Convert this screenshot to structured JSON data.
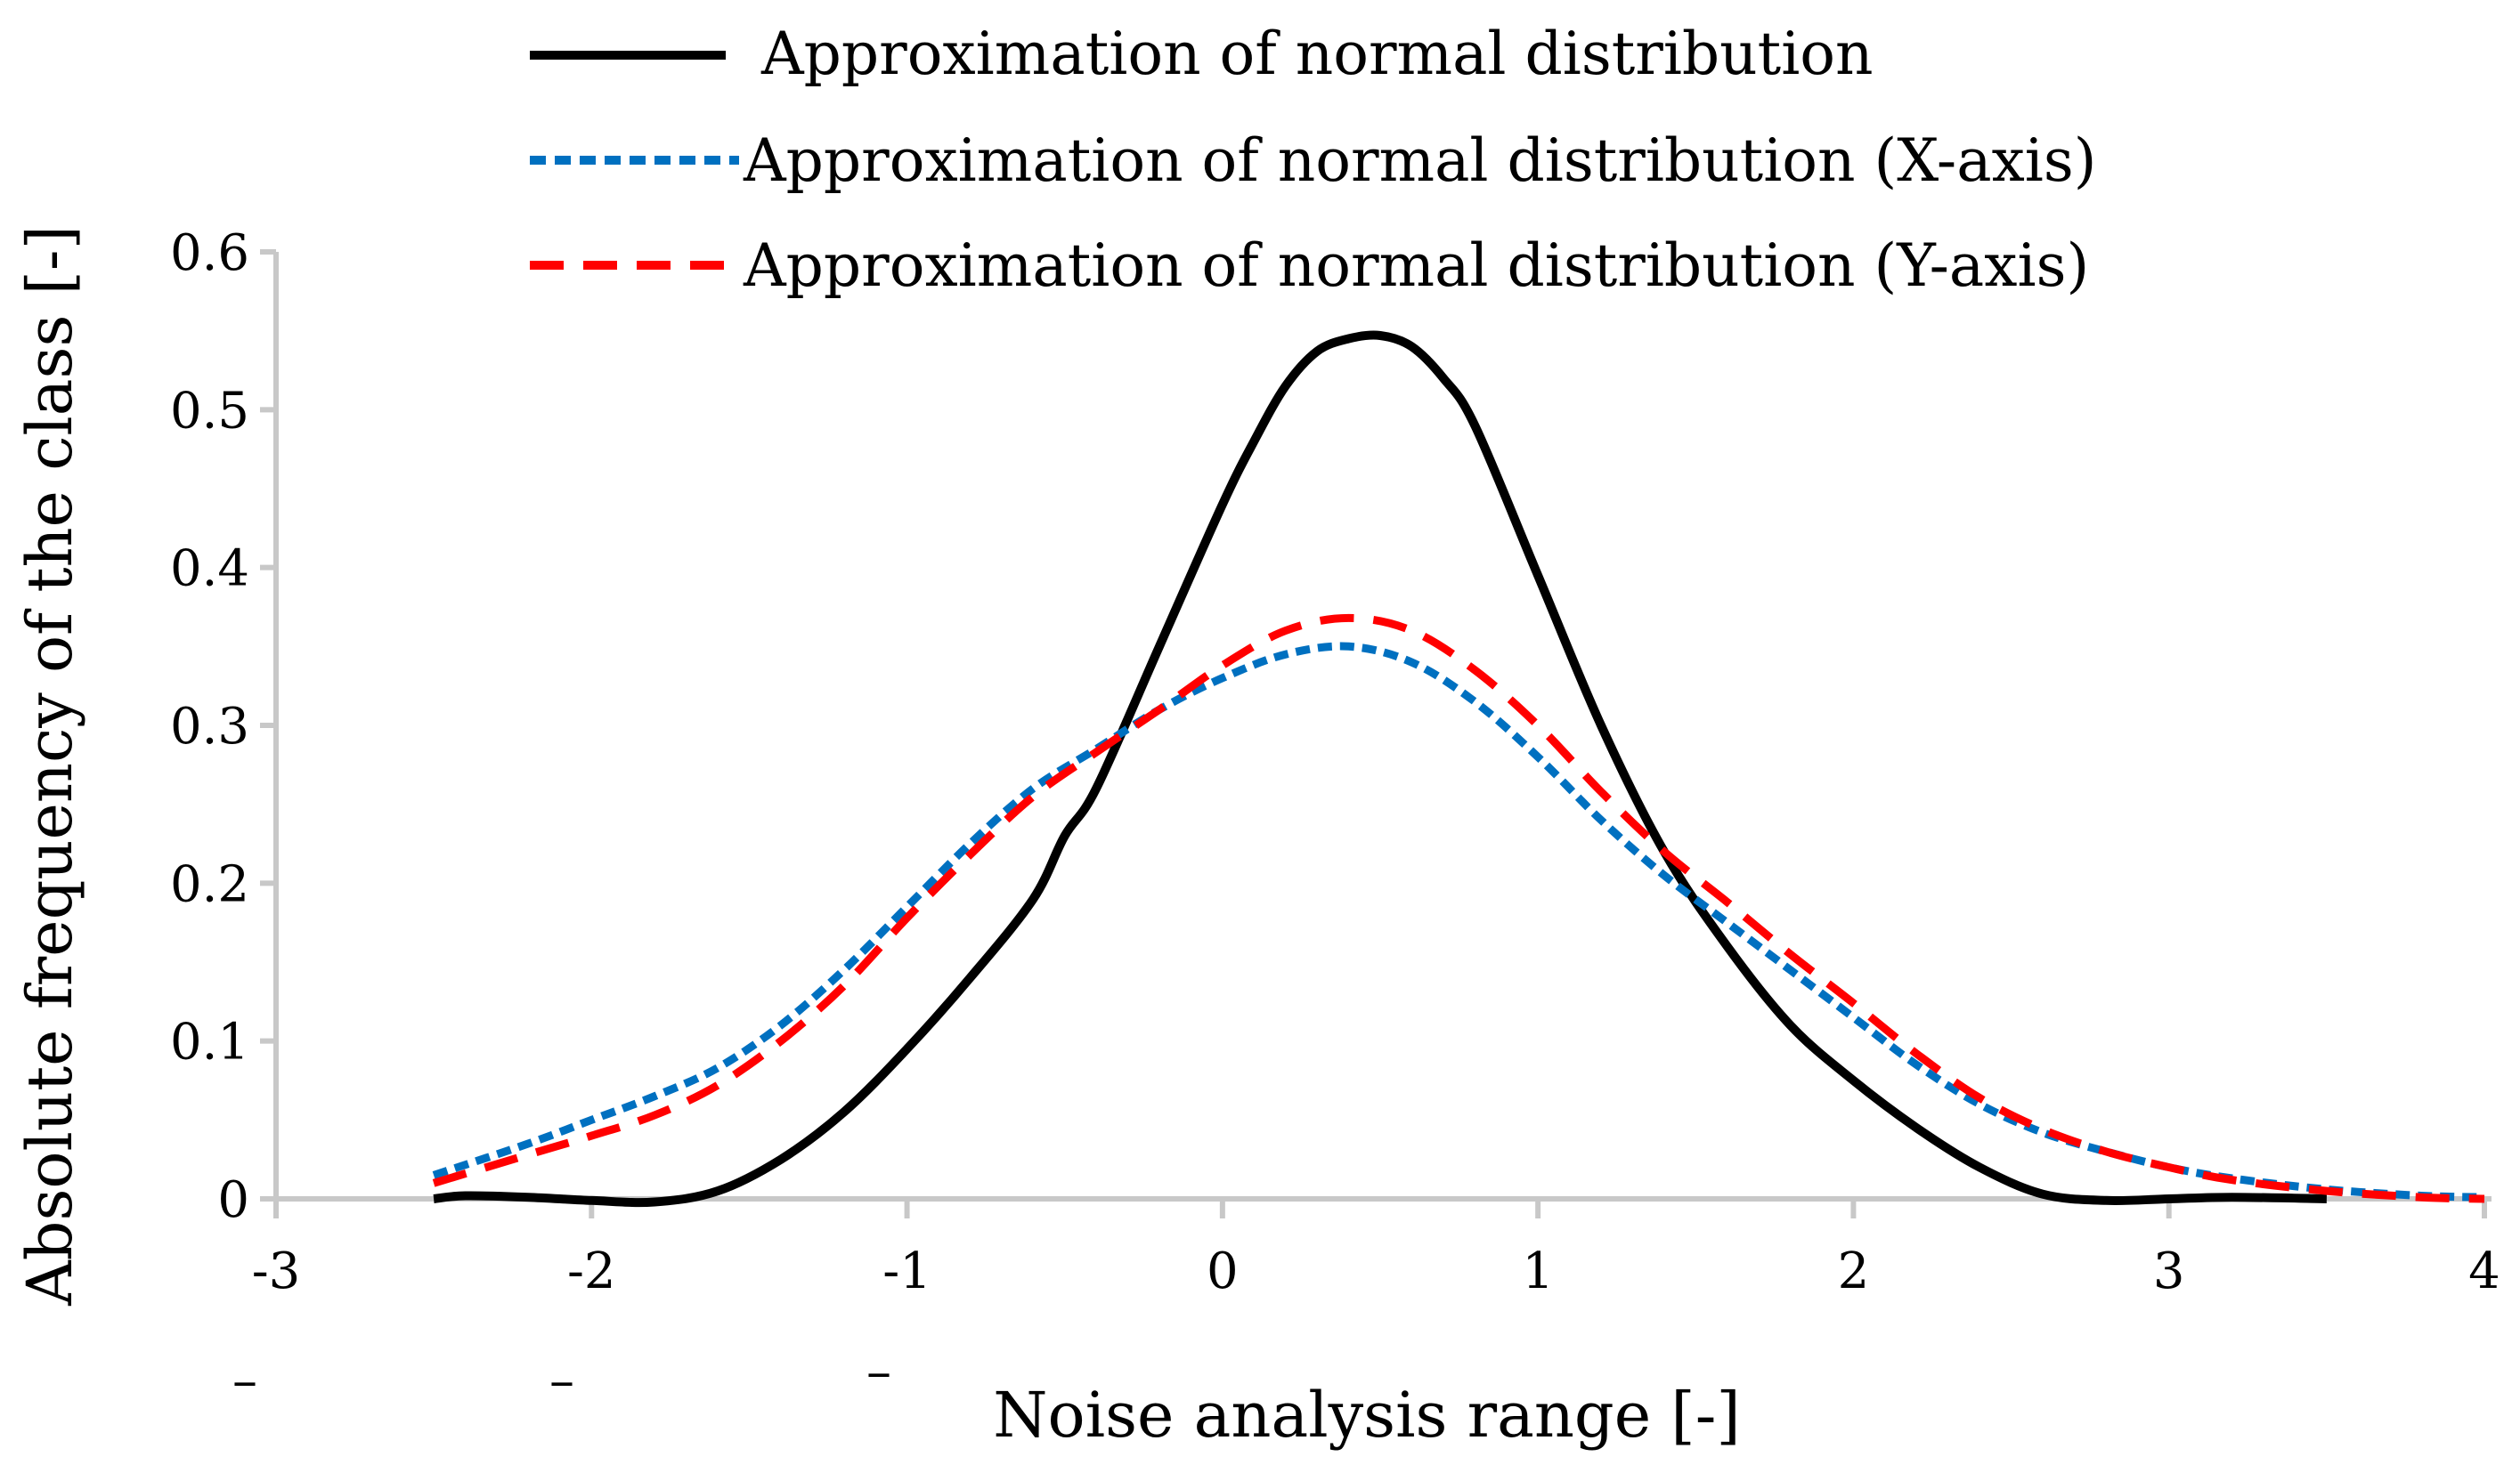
{
  "chart_data": {
    "type": "line",
    "title": "",
    "xlabel": "Noise analysis range [-]",
    "ylabel": "Absolute frequency of the class [-]",
    "xlim": [
      -3,
      4
    ],
    "ylim": [
      0,
      0.6
    ],
    "x_ticks": [
      -3,
      -2,
      -1,
      0,
      1,
      2,
      3,
      4
    ],
    "x_tick_labels": [
      "-3",
      "-2",
      "-1",
      "0",
      "1",
      "2",
      "3",
      "4"
    ],
    "y_ticks": [
      0,
      0.1,
      0.2,
      0.3,
      0.4,
      0.5,
      0.6
    ],
    "y_tick_labels": [
      "0",
      "0.1",
      "0.2",
      "0.3",
      "0.4",
      "0.5",
      "0.6"
    ],
    "grid": false,
    "legend_position": "top",
    "stray_marks": [
      "–",
      "–",
      "–"
    ],
    "series": [
      {
        "name": "Approximation of normal distribution",
        "color": "#000000",
        "style": "solid",
        "x": [
          -2.5,
          -2.4,
          -2.2,
          -2.0,
          -1.8,
          -1.6,
          -1.4,
          -1.2,
          -1.0,
          -0.8,
          -0.6,
          -0.5,
          -0.4,
          -0.2,
          0.0,
          0.1,
          0.2,
          0.3,
          0.4,
          0.5,
          0.6,
          0.7,
          0.8,
          1.0,
          1.2,
          1.4,
          1.6,
          1.8,
          2.0,
          2.2,
          2.4,
          2.6,
          2.8,
          3.0,
          3.2,
          3.5
        ],
        "y": [
          0.0,
          0.002,
          0.001,
          -0.001,
          -0.002,
          0.005,
          0.025,
          0.055,
          0.095,
          0.14,
          0.19,
          0.23,
          0.26,
          0.35,
          0.44,
          0.48,
          0.515,
          0.537,
          0.545,
          0.547,
          0.54,
          0.52,
          0.49,
          0.395,
          0.3,
          0.22,
          0.16,
          0.11,
          0.075,
          0.045,
          0.02,
          0.003,
          -0.001,
          0.0,
          0.001,
          0.0
        ]
      },
      {
        "name": "Approximation of normal distribution (X-axis)",
        "color": "#0070C0",
        "style": "dotted",
        "x": [
          -2.5,
          -2.2,
          -2.0,
          -1.8,
          -1.6,
          -1.4,
          -1.2,
          -1.0,
          -0.8,
          -0.6,
          -0.4,
          -0.2,
          0.0,
          0.2,
          0.4,
          0.6,
          0.8,
          1.0,
          1.2,
          1.4,
          1.6,
          1.8,
          2.0,
          2.2,
          2.4,
          2.6,
          2.8,
          3.0,
          3.2,
          3.5,
          3.8,
          4.0
        ],
        "y": [
          0.015,
          0.035,
          0.05,
          0.065,
          0.083,
          0.11,
          0.145,
          0.185,
          0.225,
          0.26,
          0.285,
          0.31,
          0.33,
          0.345,
          0.35,
          0.34,
          0.315,
          0.28,
          0.24,
          0.205,
          0.175,
          0.145,
          0.115,
          0.085,
          0.06,
          0.042,
          0.03,
          0.02,
          0.013,
          0.006,
          0.002,
          0.001
        ]
      },
      {
        "name": "Approximation of normal distribution (Y-axis)",
        "color": "#FF0000",
        "style": "dashed",
        "x": [
          -2.5,
          -2.2,
          -2.0,
          -1.8,
          -1.6,
          -1.4,
          -1.2,
          -1.0,
          -0.8,
          -0.6,
          -0.4,
          -0.2,
          0.0,
          0.2,
          0.4,
          0.6,
          0.8,
          1.0,
          1.2,
          1.4,
          1.6,
          1.8,
          2.0,
          2.2,
          2.4,
          2.6,
          2.8,
          3.0,
          3.2,
          3.5,
          3.8,
          4.0
        ],
        "y": [
          0.01,
          0.028,
          0.04,
          0.053,
          0.072,
          0.1,
          0.135,
          0.178,
          0.218,
          0.255,
          0.283,
          0.31,
          0.338,
          0.36,
          0.368,
          0.36,
          0.335,
          0.3,
          0.258,
          0.22,
          0.188,
          0.155,
          0.124,
          0.092,
          0.064,
          0.044,
          0.03,
          0.02,
          0.012,
          0.005,
          0.001,
          0.0
        ]
      }
    ]
  }
}
